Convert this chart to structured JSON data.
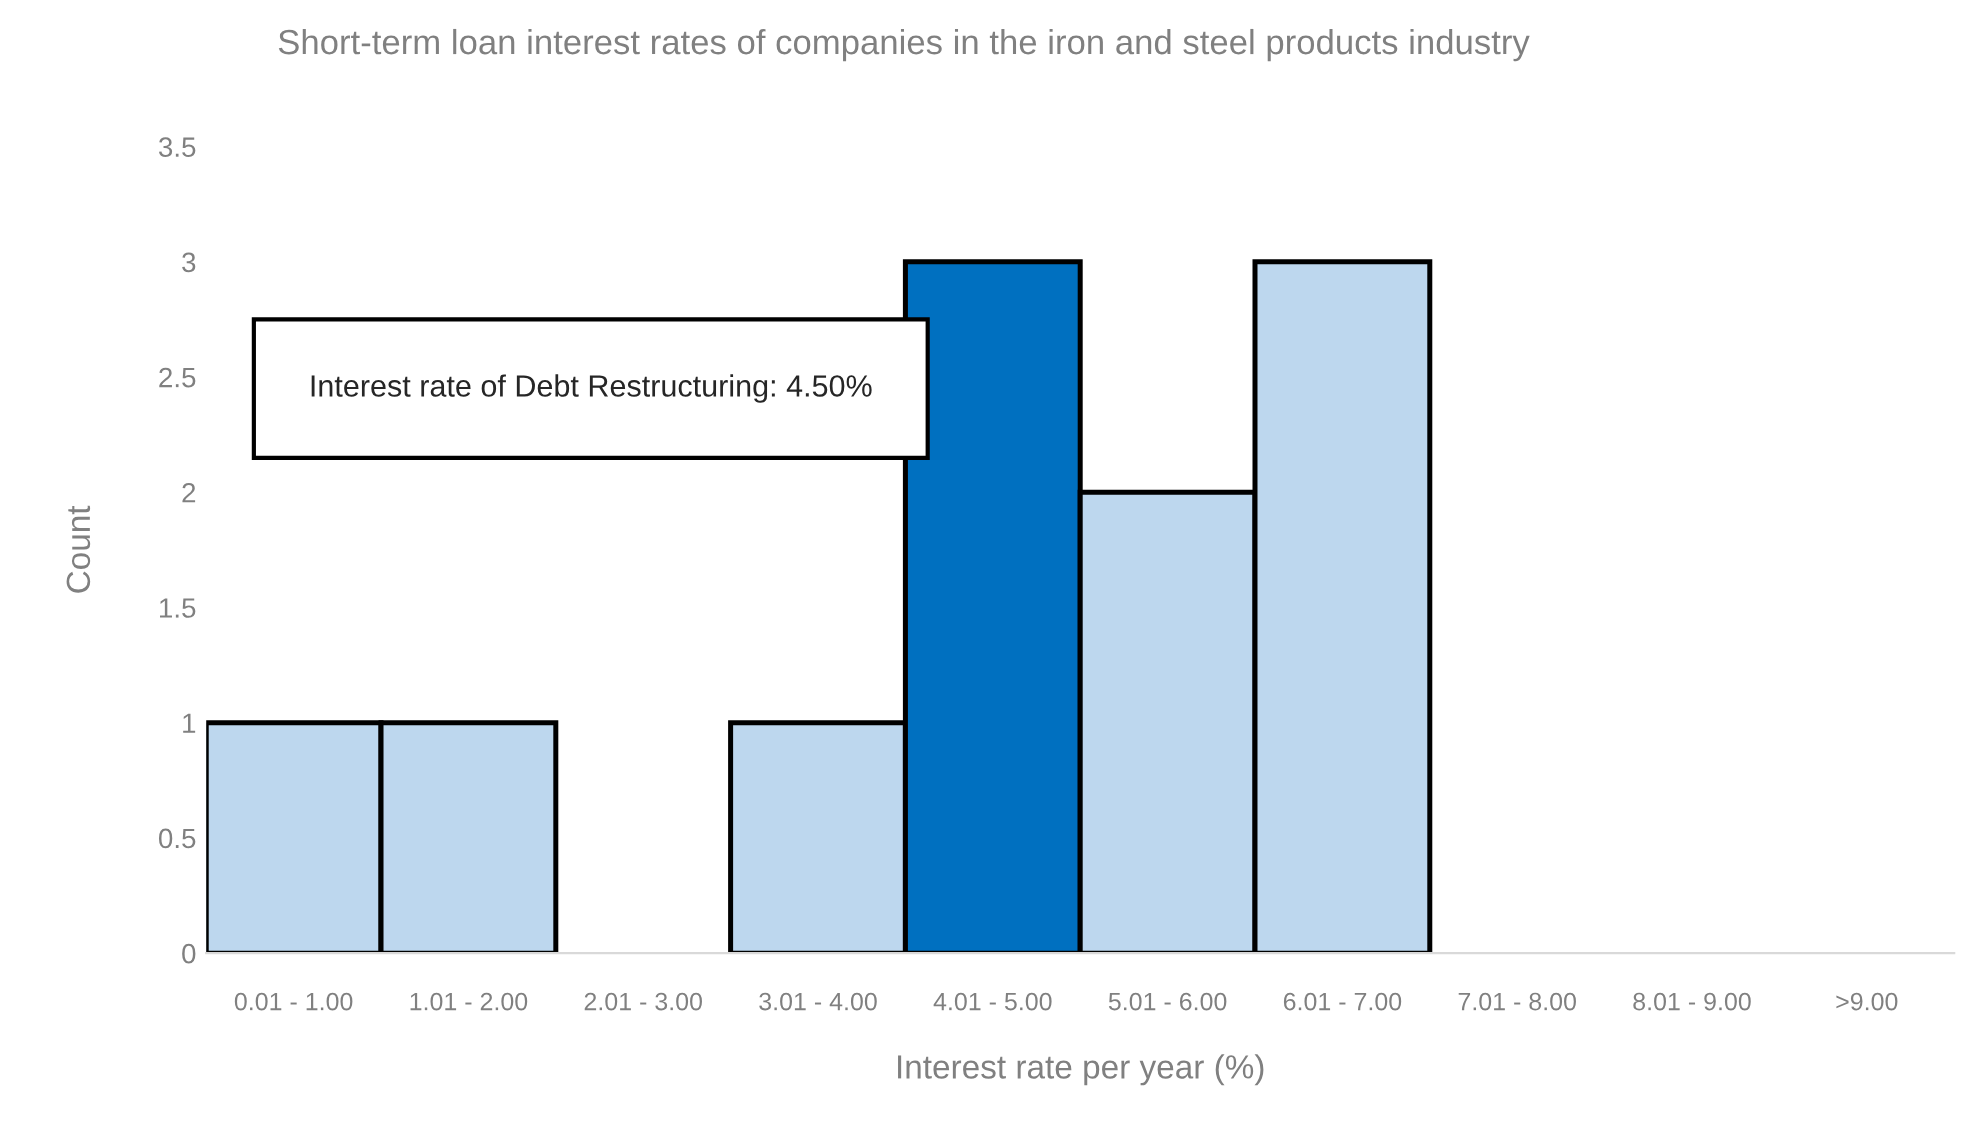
{
  "chart_data": {
    "type": "bar",
    "title": "Short-term loan interest rates of companies in the iron and steel products industry",
    "xlabel": "Interest rate per year (%)",
    "ylabel": "Count",
    "categories": [
      "0.01 - 1.00",
      "1.01 - 2.00",
      "2.01 - 3.00",
      "3.01 - 4.00",
      "4.01 - 5.00",
      "5.01 - 6.00",
      "6.01 - 7.00",
      "7.01 - 8.00",
      "8.01 - 9.00",
      ">9.00"
    ],
    "values": [
      1,
      1,
      0,
      1,
      3,
      2,
      3,
      0,
      0,
      0
    ],
    "colors": [
      "#bdd7ee",
      "#bdd7ee",
      "#bdd7ee",
      "#bdd7ee",
      "#0070c0",
      "#bdd7ee",
      "#bdd7ee",
      "#bdd7ee",
      "#bdd7ee",
      "#bdd7ee"
    ],
    "ylim": [
      0,
      3.5
    ],
    "yticks": [
      0,
      0.5,
      1,
      1.5,
      2,
      2.5,
      3,
      3.5
    ],
    "annotations": [
      "Interest rate of Debt Restructuring: 4.50%"
    ],
    "grid": false,
    "legend": false
  }
}
